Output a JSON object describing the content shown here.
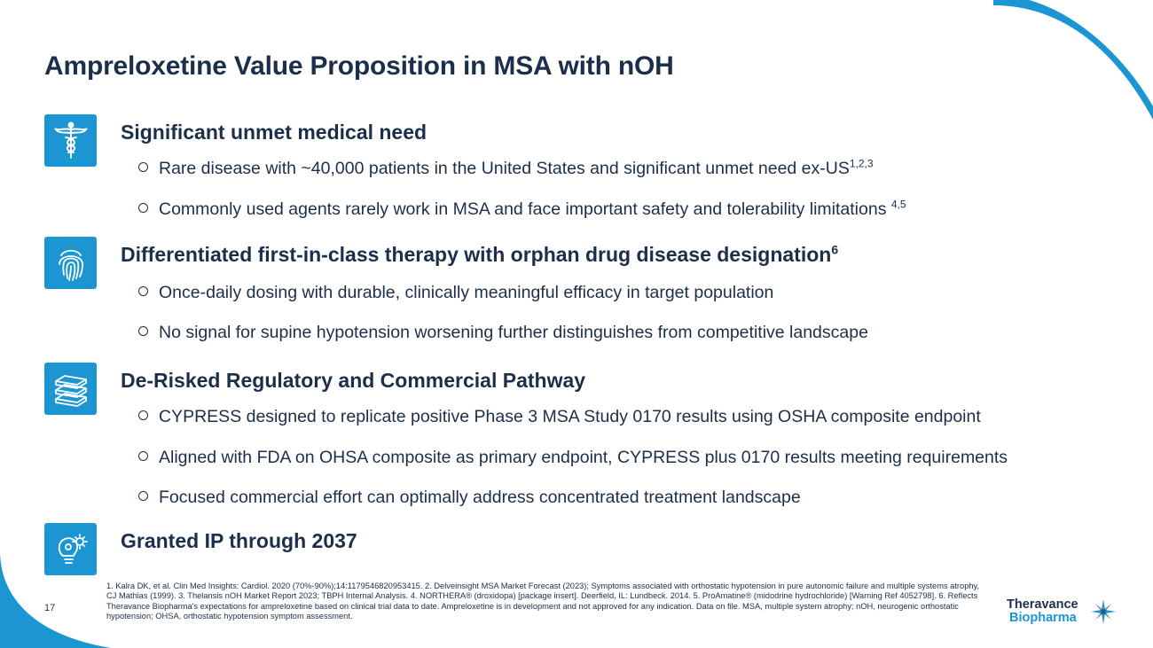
{
  "title": "Ampreloxetine Value Proposition in MSA with nOH",
  "sections": [
    {
      "icon": "caduceus-icon",
      "heading": "Significant unmet medical need",
      "heading_sup": "",
      "bullets": [
        {
          "text": "Rare disease with ~40,000 patients in the United States and significant unmet need ex-US",
          "sup": "1,2,3"
        },
        {
          "text": "Commonly used agents rarely work in MSA and face important safety and tolerability limitations ",
          "sup": "4,5"
        }
      ]
    },
    {
      "icon": "fingerprint-icon",
      "heading": "Differentiated first-in-class therapy with orphan drug disease designation",
      "heading_sup": "6",
      "bullets": [
        {
          "text": "Once-daily dosing with durable, clinically meaningful efficacy in target population",
          "sup": ""
        },
        {
          "text": "No signal for supine hypotension worsening further distinguishes from competitive landscape",
          "sup": ""
        }
      ]
    },
    {
      "icon": "books-icon",
      "heading": "De-Risked Regulatory and Commercial Pathway",
      "heading_sup": "",
      "bullets": [
        {
          "text": "CYPRESS designed to replicate positive Phase 3 MSA Study 0170 results using OSHA composite endpoint",
          "sup": ""
        },
        {
          "text": "Aligned with FDA on OHSA composite as primary endpoint, CYPRESS plus 0170 results meeting requirements",
          "sup": ""
        },
        {
          "text": "Focused commercial effort can optimally address concentrated treatment landscape",
          "sup": ""
        }
      ]
    },
    {
      "icon": "lightbulb-gear-icon",
      "heading": "Granted IP through 2037",
      "heading_sup": "",
      "bullets": []
    }
  ],
  "footnote": "1. Kalra DK, et al. Clin Med Insights: Cardiol. 2020 (70%-90%);14:1179546820953415. 2. Delveinsight MSA Market Forecast (2023); Symptoms associated with orthostatic hypotension in pure autonomic failure and multiple systems atrophy, CJ Mathias (1999). 3. Thelansis nOH Market Report 2023; TBPH Internal Analysis. 4. NORTHERA® (droxidopa) [package insert]. Deerfield, IL: Lundbeck. 2014. 5. ProAmatine® (midodrine hydrochloride) [Warning Ref 4052798]. 6. Reflects Theravance Biopharma's expectations for ampreloxetine based on clinical trial data to date. Ampreloxetine is in development and not approved for any indication. Data on file. MSA, multiple system atrophy; nOH, neurogenic orthostatic hypotension; OHSA, orthostatic hypotension symptom assessment.",
  "page_number": "17",
  "logo": {
    "line1": "Theravance",
    "line2": "Biopharma"
  },
  "colors": {
    "accent": "#1b96d3",
    "text": "#1c2f4a"
  }
}
